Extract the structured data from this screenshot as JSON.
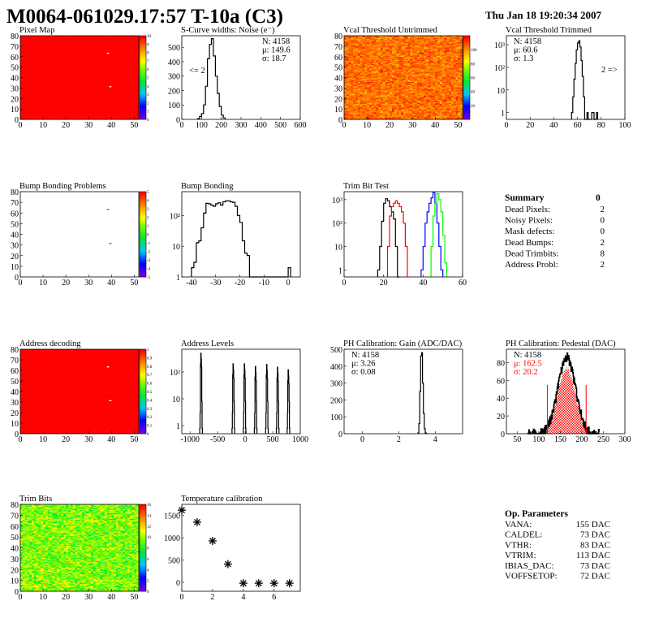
{
  "header": {
    "title": "M0064-061029.17:57 T-10a (C3)",
    "date": "Thu Jan 18 19:20:34 2007"
  },
  "summary": {
    "title": "Summary",
    "total": "0",
    "rows": [
      {
        "label": "Dead Pixels:",
        "value": "2"
      },
      {
        "label": "Noisy Pixels:",
        "value": "0"
      },
      {
        "label": "Mask defects:",
        "value": "0"
      },
      {
        "label": "Dead Bumps:",
        "value": "2"
      },
      {
        "label": "Dead Trimbits:",
        "value": "8"
      },
      {
        "label": "Address Probl:",
        "value": "2"
      }
    ]
  },
  "op_parameters": {
    "title": "Op. Parameters",
    "rows": [
      {
        "label": "VANA:",
        "value": "155 DAC"
      },
      {
        "label": "CALDEL:",
        "value": "73 DAC"
      },
      {
        "label": "VTHR:",
        "value": "83 DAC"
      },
      {
        "label": "VTRIM:",
        "value": "113 DAC"
      },
      {
        "label": "IBIAS_DAC:",
        "value": "73 DAC"
      },
      {
        "label": "VOFFSETOP:",
        "value": "72 DAC"
      }
    ]
  },
  "colors": {
    "frame": "#000000",
    "red": "#ff0000",
    "blue": "#0000ff",
    "green": "#00ff00"
  },
  "chart_data": [
    {
      "id": "pixel-map",
      "type": "heatmap",
      "title": "Pixel Map",
      "xlim": [
        0,
        52
      ],
      "ylim": [
        0,
        80
      ],
      "xticks": [
        "0",
        "10",
        "20",
        "30",
        "40",
        "50"
      ],
      "yticks": [
        "0",
        "10",
        "20",
        "30",
        "40",
        "50",
        "60",
        "70",
        "80"
      ],
      "zlim": [
        0,
        10
      ],
      "zticks": [
        "0",
        "1",
        "2",
        "3",
        "4",
        "5",
        "6",
        "7",
        "8",
        "9",
        "10"
      ],
      "fill_value": 10,
      "missing_pixels": [
        [
          38,
          63
        ],
        [
          39,
          31
        ]
      ]
    },
    {
      "id": "s-curve-noise",
      "type": "bar",
      "title": "S-Curve widths: Noise (e⁻)",
      "xlim": [
        0,
        600
      ],
      "ylim": [
        0,
        580
      ],
      "xticks": [
        "0",
        "100",
        "200",
        "300",
        "400",
        "500",
        "600"
      ],
      "yticks": [
        "0",
        "100",
        "200",
        "300",
        "400",
        "500"
      ],
      "bins": {
        "start": 80,
        "width": 10,
        "counts": [
          5,
          20,
          40,
          100,
          230,
          420,
          520,
          560,
          440,
          300,
          180,
          90,
          30,
          10
        ]
      },
      "stats": [
        "N: 4158",
        "μ: 149.6",
        "σ: 18.7"
      ],
      "underflow_label": "<= 2"
    },
    {
      "id": "vcal-untrimmed",
      "type": "heatmap",
      "title": "Vcal Threshold Untrimmed",
      "xlim": [
        0,
        52
      ],
      "ylim": [
        0,
        80
      ],
      "xticks": [
        "0",
        "10",
        "20",
        "30",
        "40",
        "50"
      ],
      "yticks": [
        "0",
        "10",
        "20",
        "30",
        "40",
        "50",
        "60",
        "70",
        "80"
      ],
      "zlim": [
        0,
        120
      ],
      "zticks": [
        "20",
        "40",
        "60",
        "80",
        "100"
      ],
      "mean": 105,
      "spread": 8
    },
    {
      "id": "vcal-trimmed",
      "type": "bar",
      "log_y": true,
      "title": "Vcal Threshold Trimmed",
      "xlim": [
        0,
        100
      ],
      "ylim": [
        0.5,
        2500
      ],
      "xticks": [
        "0",
        "20",
        "40",
        "60",
        "80",
        "100"
      ],
      "yticks": [
        {
          "v": 1,
          "t": "1"
        },
        {
          "v": 10,
          "t": "10"
        },
        {
          "v": 100,
          "t": "10²"
        },
        {
          "v": 1000,
          "t": "10³"
        }
      ],
      "bins": {
        "start": 55,
        "width": 1,
        "counts": [
          1,
          5,
          30,
          150,
          600,
          1200,
          1500,
          800,
          200,
          40,
          5,
          0,
          0,
          1,
          0,
          0,
          0,
          1,
          1,
          0,
          0,
          1
        ]
      },
      "stats": [
        "N: 4158",
        "μ: 60.6",
        "σ:  1.3"
      ],
      "overflow_label": "2 =>"
    },
    {
      "id": "bump-bonding-problems",
      "type": "heatmap",
      "title": "Bump Bonding Problems",
      "xlim": [
        0,
        52
      ],
      "ylim": [
        0,
        80
      ],
      "xticks": [
        "0",
        "10",
        "20",
        "30",
        "40",
        "50"
      ],
      "yticks": [
        "0",
        "10",
        "20",
        "30",
        "40",
        "50",
        "60",
        "70",
        "80"
      ],
      "zlim": [
        -5,
        5
      ],
      "zticks": [
        "-5",
        "-4",
        "-3",
        "-2",
        "-1",
        "0",
        "1",
        "2",
        "3",
        "4",
        "5"
      ],
      "marked_pixels": [
        [
          38,
          63
        ],
        [
          39,
          31
        ]
      ]
    },
    {
      "id": "bump-bonding",
      "type": "bar",
      "log_y": true,
      "title": "Bump Bonding",
      "xlim": [
        -44,
        5
      ],
      "ylim": [
        1,
        600
      ],
      "xticks": [
        {
          "v": -40,
          "t": "-40"
        },
        {
          "v": -30,
          "t": "-30"
        },
        {
          "v": -20,
          "t": "-20"
        },
        {
          "v": -10,
          "t": "-10"
        },
        {
          "v": 0,
          "t": "0"
        }
      ],
      "yticks": [
        {
          "v": 1,
          "t": "1"
        },
        {
          "v": 10,
          "t": "10"
        },
        {
          "v": 100,
          "t": "10²"
        }
      ],
      "bins": {
        "start": -40,
        "width": 1,
        "counts": [
          2,
          3,
          13,
          15,
          40,
          120,
          250,
          240,
          220,
          200,
          240,
          260,
          220,
          280,
          300,
          300,
          280,
          270,
          200,
          100,
          60,
          15,
          6,
          5,
          1,
          0,
          0,
          0,
          0,
          0,
          0,
          0,
          0,
          0,
          0,
          0,
          0,
          0,
          0,
          0,
          2
        ]
      }
    },
    {
      "id": "trim-bit-test",
      "type": "bar",
      "log_y": true,
      "title": "Trim Bit Test",
      "xlim": [
        0,
        60
      ],
      "ylim": [
        0.5,
        2200
      ],
      "xticks": [
        {
          "v": 0,
          "t": "0"
        },
        {
          "v": 20,
          "t": "20"
        },
        {
          "v": 40,
          "t": "40"
        },
        {
          "v": 60,
          "t": "60"
        }
      ],
      "yticks": [
        {
          "v": 1,
          "t": "1"
        },
        {
          "v": 10,
          "t": "10"
        },
        {
          "v": 100,
          "t": "10²"
        },
        {
          "v": 1000,
          "t": "10³"
        }
      ],
      "series": [
        {
          "name": "trim0",
          "color": "#000000",
          "start": 17,
          "counts": [
            1,
            10,
            120,
            700,
            1100,
            900,
            500,
            300,
            150,
            10,
            0
          ]
        },
        {
          "name": "trim1",
          "color": "#ff0000",
          "start": 22,
          "counts": [
            10,
            200,
            500,
            700,
            900,
            700,
            500,
            300,
            100,
            10
          ]
        },
        {
          "name": "trim2",
          "color": "#0000ff",
          "start": 39,
          "counts": [
            1,
            10,
            100,
            300,
            700,
            1200,
            2000,
            700,
            100,
            10,
            1
          ]
        },
        {
          "name": "trim3",
          "color": "#00ff00",
          "start": 44,
          "counts": [
            10,
            200,
            700,
            1800,
            1000,
            300,
            30,
            2
          ]
        }
      ]
    },
    {
      "id": "address-decoding",
      "type": "heatmap",
      "title": "Address decoding",
      "xlim": [
        0,
        52
      ],
      "ylim": [
        0,
        80
      ],
      "xticks": [
        "0",
        "10",
        "20",
        "30",
        "40",
        "50"
      ],
      "yticks": [
        "0",
        "10",
        "20",
        "30",
        "40",
        "50",
        "60",
        "70",
        "80"
      ],
      "zlim": [
        0,
        1
      ],
      "zticks": [
        "0",
        "0.1",
        "0.2",
        "0.3",
        "0.4",
        "0.5",
        "0.6",
        "0.7",
        "0.8",
        "0.9",
        "1"
      ],
      "fill_value": 1,
      "missing_pixels": [
        [
          38,
          63
        ],
        [
          39,
          31
        ]
      ]
    },
    {
      "id": "address-levels",
      "type": "bar",
      "log_y": true,
      "title": "Address Levels",
      "xlim": [
        -1150,
        1000
      ],
      "ylim": [
        0.5,
        700
      ],
      "xticks": [
        {
          "v": -1000,
          "t": "-1000"
        },
        {
          "v": -500,
          "t": "-500"
        },
        {
          "v": 0,
          "t": "0"
        },
        {
          "v": 500,
          "t": "500"
        },
        {
          "v": 1000,
          "t": "1000"
        }
      ],
      "yticks": [
        {
          "v": 1,
          "t": "1"
        },
        {
          "v": 10,
          "t": "10"
        },
        {
          "v": 100,
          "t": "10²"
        }
      ],
      "peaks": [
        {
          "x": -800,
          "h": 500
        },
        {
          "x": -215,
          "h": 200
        },
        {
          "x": -10,
          "h": 200
        },
        {
          "x": 190,
          "h": 160
        },
        {
          "x": 395,
          "h": 190
        },
        {
          "x": 590,
          "h": 150
        },
        {
          "x": 785,
          "h": 120
        }
      ]
    },
    {
      "id": "ph-gain",
      "type": "bar",
      "title": "PH Calibration: Gain (ADC/DAC)",
      "xlim": [
        -1,
        5.5
      ],
      "ylim": [
        0,
        500
      ],
      "xticks": [
        {
          "v": 0,
          "t": "0"
        },
        {
          "v": 2,
          "t": "2"
        },
        {
          "v": 4,
          "t": "4"
        }
      ],
      "yticks": [
        "0",
        "100",
        "200",
        "300",
        "400",
        "500"
      ],
      "bins": {
        "start": 3.05,
        "width": 0.05,
        "counts": [
          5,
          60,
          250,
          460,
          480,
          300,
          120,
          30,
          5,
          1
        ]
      },
      "stats": [
        "N: 4158",
        "μ: 3.26",
        "σ: 0.08"
      ]
    },
    {
      "id": "ph-pedestal",
      "type": "bar",
      "title": "PH Calibration: Pedestal (DAC)",
      "xlim": [
        25,
        300
      ],
      "ylim": [
        0,
        95
      ],
      "xticks": [
        {
          "v": 50,
          "t": "50"
        },
        {
          "v": 100,
          "t": "100"
        },
        {
          "v": 150,
          "t": "150"
        },
        {
          "v": 200,
          "t": "200"
        },
        {
          "v": 250,
          "t": "250"
        },
        {
          "v": 300,
          "t": "300"
        }
      ],
      "yticks": [
        {
          "v": 0,
          "t": "0"
        },
        {
          "v": 20,
          "t": "20"
        },
        {
          "v": 40,
          "t": "40"
        },
        {
          "v": 60,
          "t": "60"
        },
        {
          "v": 80,
          "t": "80"
        }
      ],
      "gaussian": {
        "mean": 162.5,
        "sigma": 20.2,
        "peak": 86,
        "range": [
          75,
          240
        ]
      },
      "fit_range": [
        120,
        210
      ],
      "stats": [
        "N: 4158",
        "μ: 162.5",
        "σ: 20.2"
      ]
    },
    {
      "id": "trim-bits",
      "type": "heatmap",
      "title": "Trim Bits",
      "xlim": [
        0,
        52
      ],
      "ylim": [
        0,
        80
      ],
      "xticks": [
        "0",
        "10",
        "20",
        "30",
        "40",
        "50"
      ],
      "yticks": [
        "0",
        "10",
        "20",
        "30",
        "40",
        "50",
        "60",
        "70",
        "80"
      ],
      "zlim": [
        0,
        16
      ],
      "zticks": [
        "0",
        "2",
        "4",
        "6",
        "8",
        "10",
        "12",
        "14",
        "16"
      ],
      "mean": 9.5,
      "spread": 1.8
    },
    {
      "id": "temperature-calibration",
      "type": "scatter",
      "title": "Temperature calibration",
      "xlim": [
        0,
        7.7
      ],
      "ylim": [
        -200,
        1750
      ],
      "xticks": [
        {
          "v": 0,
          "t": "0"
        },
        {
          "v": 2,
          "t": "2"
        },
        {
          "v": 4,
          "t": "4"
        },
        {
          "v": 6,
          "t": "6"
        }
      ],
      "yticks": [
        {
          "v": 0,
          "t": "0"
        },
        {
          "v": 500,
          "t": "500"
        },
        {
          "v": 1000,
          "t": "1000"
        },
        {
          "v": 1500,
          "t": "1500"
        }
      ],
      "x": [
        0,
        1,
        2,
        3,
        4,
        5,
        6,
        7
      ],
      "y": [
        1620,
        1350,
        930,
        410,
        -20,
        -20,
        -20,
        -20
      ]
    }
  ]
}
